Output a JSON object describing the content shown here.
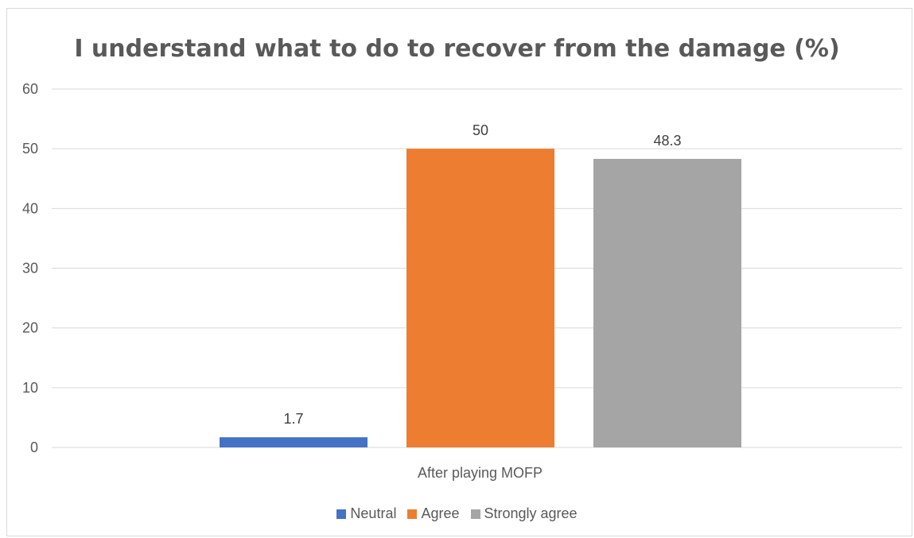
{
  "chart_data": {
    "type": "bar",
    "title": "I understand what to do to recover from the damage (%)",
    "categories": [
      "After playing MOFP"
    ],
    "series": [
      {
        "name": "Neutral",
        "values": [
          1.7
        ],
        "color": "#4472c4"
      },
      {
        "name": "Agree",
        "values": [
          50
        ],
        "color": "#ed7d31"
      },
      {
        "name": "Strongly agree",
        "values": [
          48.3
        ],
        "color": "#a5a5a5"
      }
    ],
    "ylim": [
      0,
      60
    ],
    "yticks": [
      0,
      10,
      20,
      30,
      40,
      50,
      60
    ],
    "xlabel": "",
    "ylabel": "",
    "grid": true,
    "legend": "bottom",
    "data_labels": [
      "1.7",
      "50",
      "48.3"
    ]
  }
}
